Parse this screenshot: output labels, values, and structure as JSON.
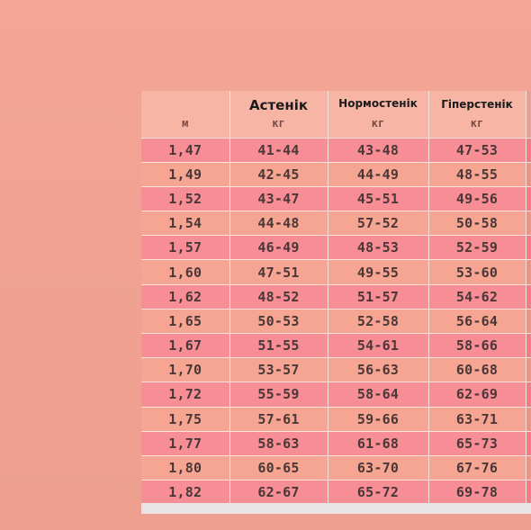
{
  "table": {
    "headers": [
      {
        "title": "",
        "unit": "м"
      },
      {
        "title": "Астенік",
        "unit": "кг"
      },
      {
        "title": "Нормостенік",
        "unit": "кг"
      },
      {
        "title": "Гіперстенік",
        "unit": "кг"
      }
    ],
    "rows": [
      [
        "1,47",
        "41-44",
        "43-48",
        "47-53"
      ],
      [
        "1,49",
        "42-45",
        "44-49",
        "48-55"
      ],
      [
        "1,52",
        "43-47",
        "45-51",
        "49-56"
      ],
      [
        "1,54",
        "44-48",
        "57-52",
        "50-58"
      ],
      [
        "1,57",
        "46-49",
        "48-53",
        "52-59"
      ],
      [
        "1,60",
        "47-51",
        "49-55",
        "53-60"
      ],
      [
        "1,62",
        "48-52",
        "51-57",
        "54-62"
      ],
      [
        "1,65",
        "50-53",
        "52-58",
        "56-64"
      ],
      [
        "1,67",
        "51-55",
        "54-61",
        "58-66"
      ],
      [
        "1,70",
        "53-57",
        "56-63",
        "60-68"
      ],
      [
        "1,72",
        "55-59",
        "58-64",
        "62-69"
      ],
      [
        "1,75",
        "57-61",
        "59-66",
        "63-71"
      ],
      [
        "1,77",
        "58-63",
        "61-68",
        "65-73"
      ],
      [
        "1,80",
        "60-65",
        "63-70",
        "67-76"
      ],
      [
        "1,82",
        "62-67",
        "65-72",
        "69-78"
      ]
    ]
  },
  "colors": {
    "page_background": "#f2a394",
    "row_odd": "#f78d95",
    "row_even": "#f5a591",
    "header_bg": "#f7b5a5"
  }
}
